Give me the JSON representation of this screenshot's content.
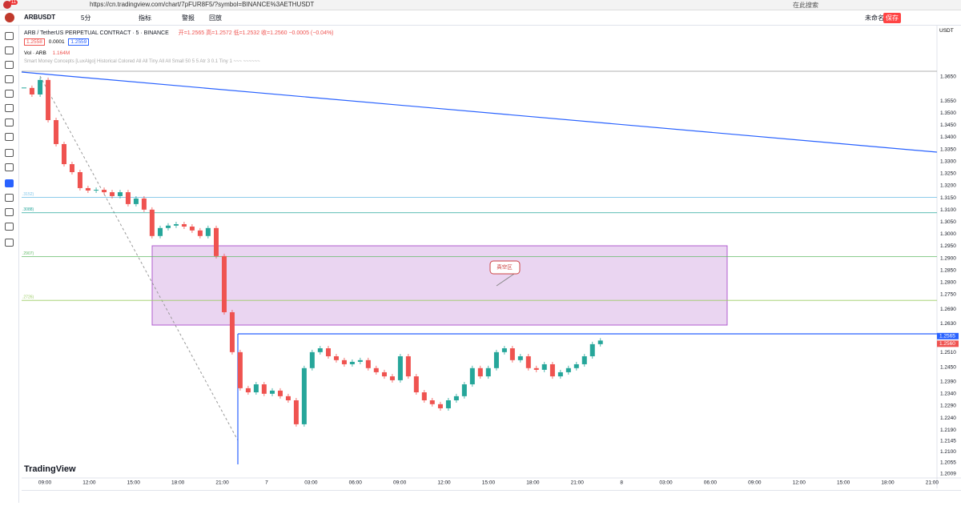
{
  "browser": {
    "tab_count": "11",
    "url": "https://cn.tradingview.com/chart/7pFUR8F5/?symbol=BINANCE%3AETHUSDT",
    "search": "在此搜索"
  },
  "toolbar": {
    "symbol": "ARBUSDT",
    "interval": "5分",
    "indicators": "指标",
    "alert": "警报",
    "replay": "回放",
    "layout": "未命名",
    "save": "保存",
    "currency": "USDT"
  },
  "legend": {
    "title": "ARB / TetherUS PERPETUAL CONTRACT · 5 · BINANCE",
    "ohlc": "开=1.2565 高=1.2572 低=1.2532 收=1.2560 −0.0005 (−0.04%)",
    "bid": "1.2558",
    "spread": "0.0001",
    "ask": "1.2559",
    "volume": "Vol · ARB",
    "volume_value": "1.164M",
    "indicator": "Smart Money Concepts [LuxAlgo] Historical Colored All All Tiny All All Small 50 5 5 Atr 3 0.1 Tiny 1 ~~~ ~~~~~~"
  },
  "watermark": "TradingView",
  "zone_label": "真空区",
  "chart_data": {
    "type": "candlestick",
    "up_color": "#26a69a",
    "down_color": "#ef5350",
    "grid": false,
    "x": [
      -1.41,
      -0.87,
      -0.32,
      0.22,
      0.76,
      1.3,
      1.84,
      2.38,
      2.92,
      3.47,
      4.01,
      4.55,
      5.09,
      5.63,
      6.17,
      6.71,
      7.25,
      7.8,
      8.34,
      8.88,
      9.42,
      9.96,
      10.5,
      11.04,
      11.59,
      12.13,
      12.67,
      13.21,
      13.75,
      14.29,
      14.83,
      15.38,
      15.92,
      16.46,
      17.0,
      17.54,
      18.08,
      18.62,
      19.17,
      19.71,
      20.25,
      20.79,
      21.33,
      21.87,
      22.41,
      22.96,
      23.5,
      24.04,
      24.58,
      25.12,
      25.66,
      26.2,
      26.75,
      27.29,
      27.83,
      28.37,
      28.91,
      29.45,
      29.99,
      30.54,
      31.08,
      31.62,
      32.16,
      32.7,
      33.24,
      33.78,
      34.33,
      34.87,
      35.41,
      35.95,
      36.49,
      37.03,
      37.57
    ],
    "values": [
      1.3604,
      1.3577,
      1.3637,
      1.3471,
      1.3372,
      1.3289,
      1.3256,
      1.319,
      1.318,
      1.3183,
      1.3173,
      1.3157,
      1.3173,
      1.3124,
      1.3147,
      1.3101,
      1.2992,
      1.3025,
      1.3035,
      1.3041,
      1.3031,
      1.3015,
      1.2992,
      1.3025,
      1.2909,
      1.2677,
      1.2512,
      1.2363,
      1.2346,
      1.2379,
      1.234,
      1.2353,
      1.233,
      1.2313,
      1.2214,
      1.2446,
      1.2512,
      1.2528,
      1.2495,
      1.2479,
      1.2462,
      1.2472,
      1.2479,
      1.2446,
      1.2429,
      1.2412,
      1.2396,
      1.2495,
      1.2412,
      1.2346,
      1.2313,
      1.2297,
      1.228,
      1.2313,
      1.233,
      1.2379,
      1.2446,
      1.2412,
      1.2446,
      1.2512,
      1.2528,
      1.2479,
      1.2495,
      1.2446,
      1.2439,
      1.2462,
      1.2412,
      1.2429,
      1.2446,
      1.2462,
      1.2495,
      1.2545,
      1.256
    ],
    "xlim": [
      -1.57,
      60.33
    ],
    "xticks": [
      {
        "value": 0,
        "label": "09:00"
      },
      {
        "value": 3,
        "label": "12:00"
      },
      {
        "value": 6,
        "label": "15:00"
      },
      {
        "value": 9,
        "label": "18:00"
      },
      {
        "value": 12,
        "label": "21:00"
      },
      {
        "value": 15,
        "label": "7"
      },
      {
        "value": 18,
        "label": "03:00"
      },
      {
        "value": 21,
        "label": "06:00"
      },
      {
        "value": 24,
        "label": "09:00"
      },
      {
        "value": 27,
        "label": "12:00"
      },
      {
        "value": 30,
        "label": "15:00"
      },
      {
        "value": 33,
        "label": "18:00"
      },
      {
        "value": 36,
        "label": "21:00"
      },
      {
        "value": 39,
        "label": "8"
      },
      {
        "value": 42,
        "label": "03:00"
      },
      {
        "value": 45,
        "label": "06:00"
      },
      {
        "value": 48,
        "label": "09:00"
      },
      {
        "value": 51,
        "label": "12:00"
      },
      {
        "value": 54,
        "label": "15:00"
      },
      {
        "value": 57,
        "label": "18:00"
      },
      {
        "value": 60,
        "label": "21:00"
      }
    ],
    "ylim": [
      1.1992,
      1.3845
    ],
    "yticks": [
      {
        "value": 1.365,
        "label": "1.3650"
      },
      {
        "value": 1.355,
        "label": "1.3550"
      },
      {
        "value": 1.35,
        "label": "1.3500"
      },
      {
        "value": 1.345,
        "label": "1.3450"
      },
      {
        "value": 1.34,
        "label": "1.3400"
      },
      {
        "value": 1.335,
        "label": "1.3350"
      },
      {
        "value": 1.33,
        "label": "1.3300"
      },
      {
        "value": 1.325,
        "label": "1.3250"
      },
      {
        "value": 1.32,
        "label": "1.3200"
      },
      {
        "value": 1.315,
        "label": "1.3150"
      },
      {
        "value": 1.31,
        "label": "1.3100"
      },
      {
        "value": 1.305,
        "label": "1.3050"
      },
      {
        "value": 1.3,
        "label": "1.3000"
      },
      {
        "value": 1.295,
        "label": "1.2950"
      },
      {
        "value": 1.29,
        "label": "1.2900"
      },
      {
        "value": 1.285,
        "label": "1.2850"
      },
      {
        "value": 1.28,
        "label": "1.2800"
      },
      {
        "value": 1.275,
        "label": "1.2750"
      },
      {
        "value": 1.269,
        "label": "1.2690"
      },
      {
        "value": 1.263,
        "label": "1.2630"
      },
      {
        "value": 1.251,
        "label": "1.2510"
      },
      {
        "value": 1.245,
        "label": "1.2450"
      },
      {
        "value": 1.239,
        "label": "1.2390"
      },
      {
        "value": 1.234,
        "label": "1.2340"
      },
      {
        "value": 1.229,
        "label": "1.2290"
      },
      {
        "value": 1.224,
        "label": "1.2240"
      },
      {
        "value": 1.219,
        "label": "1.2190"
      },
      1.2145,
      {
        "value": 1.21,
        "label": "1.2100"
      },
      {
        "value": 1.2055,
        "label": "1.2055"
      },
      1.2009
    ],
    "levels": [
      {
        "value": 1.3152,
        "label": ".3152)",
        "color": "#7cc4e8"
      },
      {
        "value": 1.3088,
        "label": ".3088)",
        "color": "#26a69a"
      },
      {
        "value": 1.2907,
        "label": ".2907)",
        "color": "#66bb6a"
      },
      {
        "value": 1.2726,
        "label": ".2726)",
        "color": "#9ccc65"
      }
    ],
    "price_labels": [
      {
        "value": 1.2565,
        "label": "1.2565",
        "color": "#2962ff"
      },
      {
        "value": 1.256,
        "label": "1.2560",
        "color": "#ef5350"
      }
    ]
  }
}
